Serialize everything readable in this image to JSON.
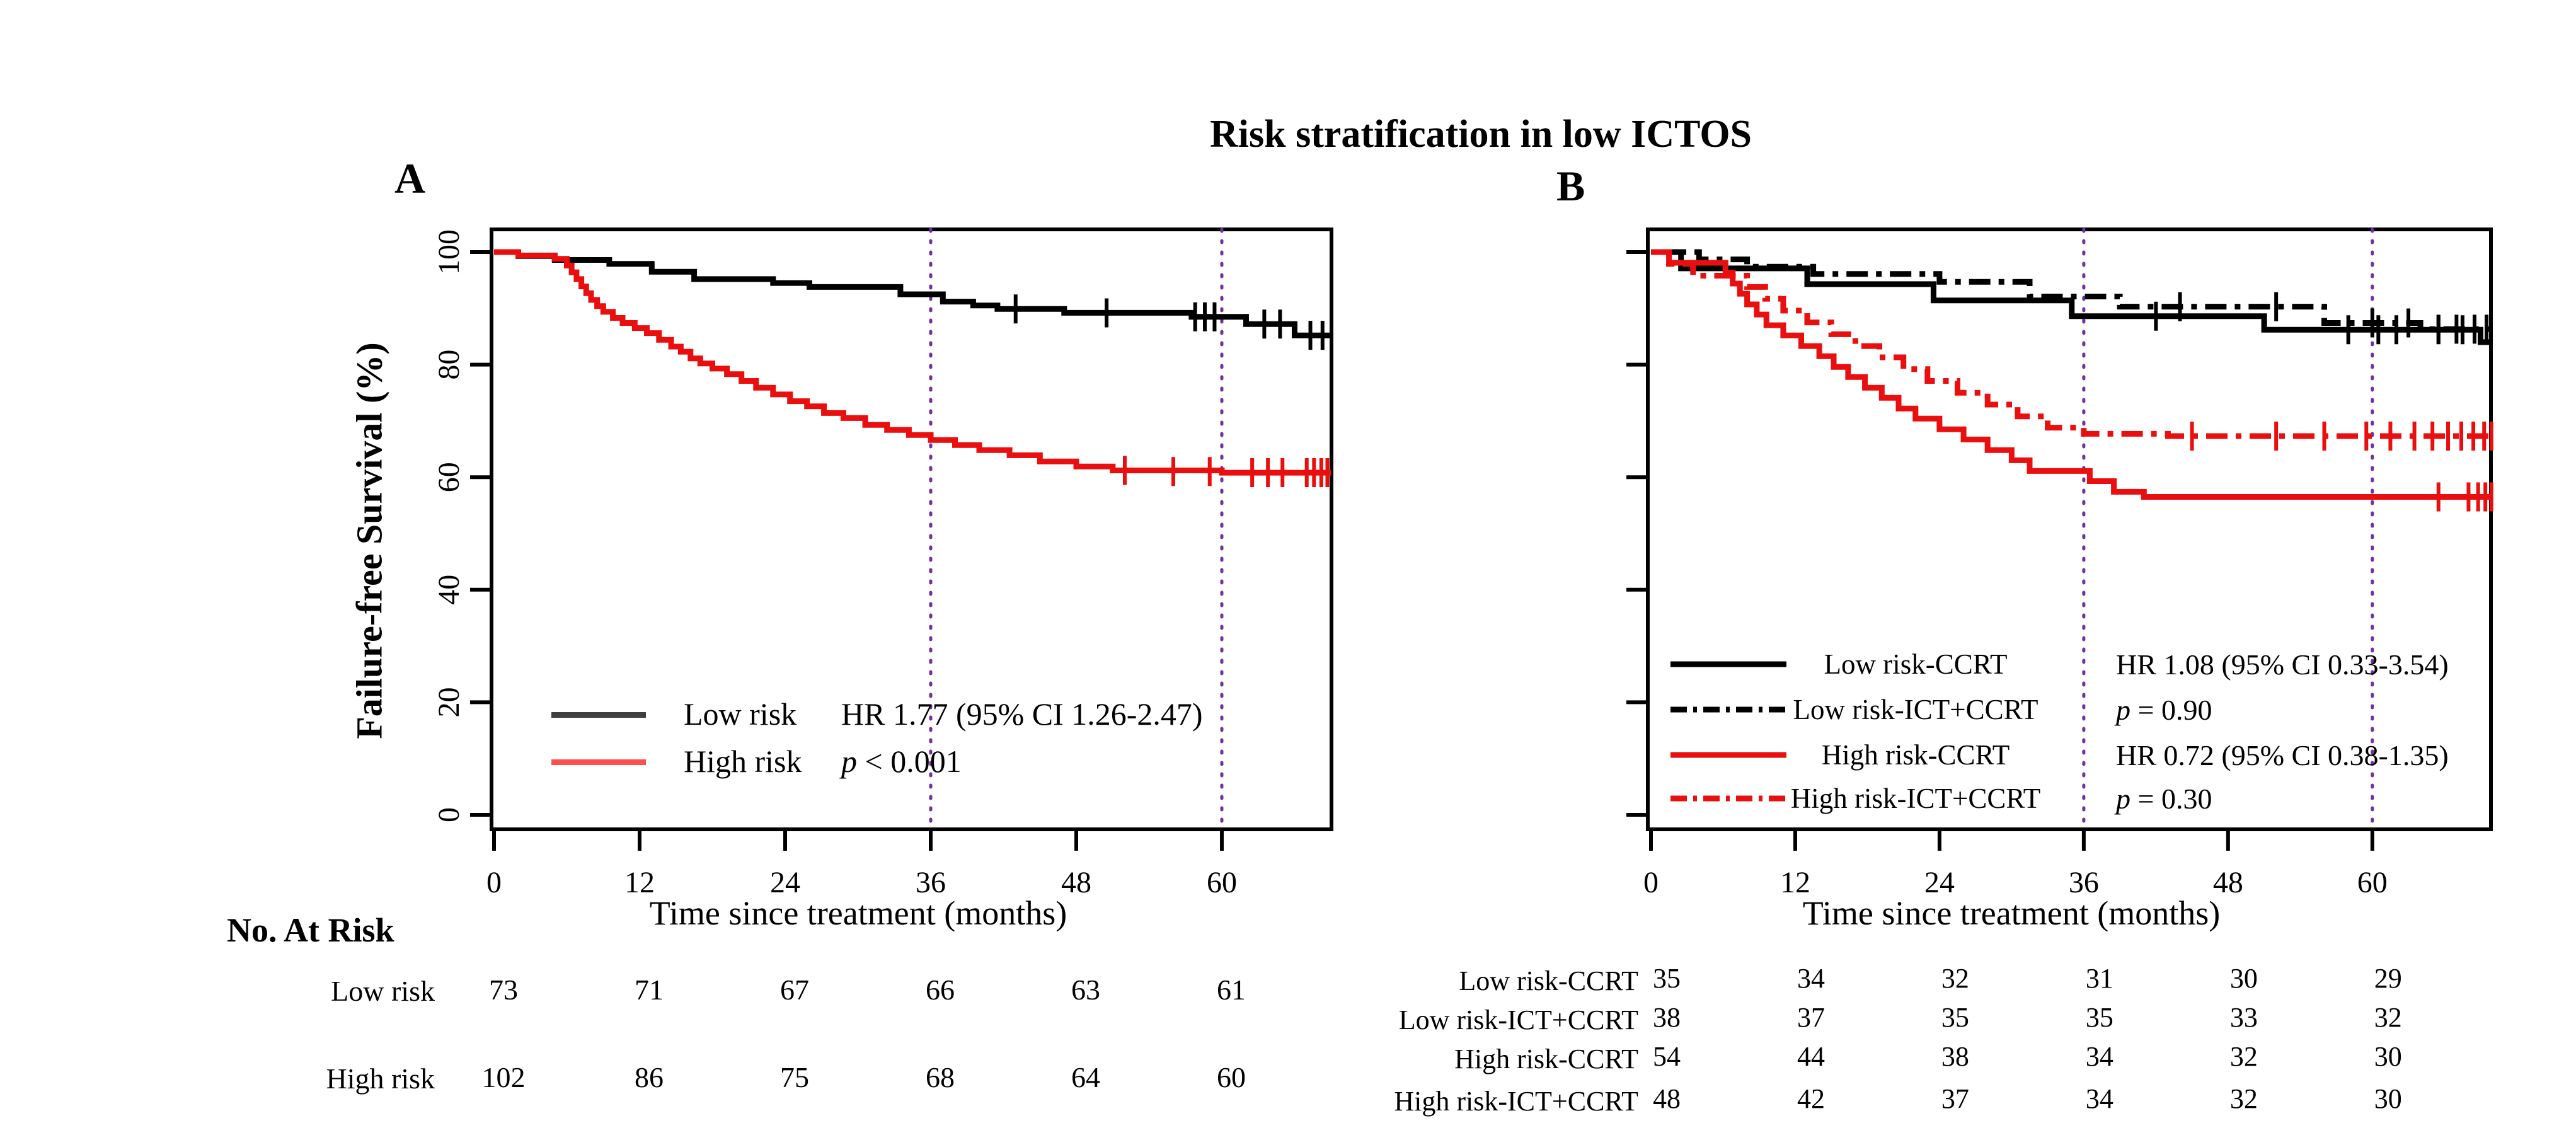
{
  "title": "Risk stratification in low ICTOS",
  "colors": {
    "black": "#000000",
    "red": "#e90f0f",
    "legend_black_a": "#3f3f3f",
    "legend_red_a": "#ff5050",
    "vline_purple": "#7030a0"
  },
  "chart_data": [
    {
      "type": "line",
      "subtype": "kaplan-meier",
      "panel_label": "A",
      "y_axis_label": "Failure-free Survival (%)",
      "x_axis_label": "Time since treatment (months)",
      "x_ticks": [
        "0",
        "12",
        "24",
        "36",
        "48",
        "60"
      ],
      "x_tick_months": [
        0,
        12,
        24,
        36,
        48,
        60
      ],
      "y_ticks": [
        "0",
        "20",
        "40",
        "60",
        "80",
        "100"
      ],
      "y_tick_values": [
        0,
        20,
        40,
        60,
        80,
        100
      ],
      "xlim": [
        0,
        69
      ],
      "ylim": [
        0,
        100
      ],
      "reference_lines_months": [
        36,
        60
      ],
      "legend": [
        {
          "name": "Low risk",
          "line": "solid",
          "color": "black",
          "stat": "HR 1.77  (95% CI 1.26-2.47)"
        },
        {
          "name": "High risk",
          "line": "solid",
          "color": "red",
          "stat_p": "p",
          "stat_rest": " < 0.001"
        }
      ],
      "series": [
        {
          "name": "Low risk",
          "color": "black",
          "dash": "solid",
          "steps": [
            [
              0,
              100
            ],
            [
              2,
              99.3
            ],
            [
              5,
              98.6
            ],
            [
              9.5,
              97.9
            ],
            [
              13,
              96.5
            ],
            [
              16.5,
              95.2
            ],
            [
              23,
              94.5
            ],
            [
              26,
              93.8
            ],
            [
              33.5,
              92.5
            ],
            [
              37,
              91.2
            ],
            [
              39.5,
              90.5
            ],
            [
              41.5,
              89.9
            ],
            [
              47,
              89.2
            ],
            [
              57.5,
              88.5
            ],
            [
              62,
              87.2
            ],
            [
              66,
              85.2
            ],
            [
              69,
              85.2
            ]
          ],
          "censors": [
            [
              43,
              89.9
            ],
            [
              50.5,
              89.2
            ],
            [
              57.8,
              88.5
            ],
            [
              58.6,
              88.5
            ],
            [
              59.4,
              88.5
            ],
            [
              63.5,
              87.2
            ],
            [
              64.8,
              87.2
            ],
            [
              67.3,
              85.2
            ],
            [
              68.3,
              85.2
            ]
          ]
        },
        {
          "name": "High risk",
          "color": "red",
          "dash": "solid",
          "steps": [
            [
              0,
              100
            ],
            [
              2,
              99.4
            ],
            [
              5,
              98.8
            ],
            [
              6,
              97.6
            ],
            [
              6.4,
              96.4
            ],
            [
              6.8,
              95.2
            ],
            [
              7.2,
              93.9
            ],
            [
              7.6,
              92.7
            ],
            [
              8,
              91.5
            ],
            [
              8.5,
              90.4
            ],
            [
              9,
              89.4
            ],
            [
              9.8,
              88.3
            ],
            [
              10.6,
              87.4
            ],
            [
              11.6,
              86.5
            ],
            [
              12.6,
              85.6
            ],
            [
              13.6,
              84.4
            ],
            [
              14.6,
              83.2
            ],
            [
              15.4,
              82.3
            ],
            [
              16.2,
              81.1
            ],
            [
              17,
              80.2
            ],
            [
              18,
              79.3
            ],
            [
              19.2,
              78.3
            ],
            [
              20.4,
              77.1
            ],
            [
              21.6,
              75.9
            ],
            [
              23,
              74.7
            ],
            [
              24.4,
              73.5
            ],
            [
              25.8,
              72.6
            ],
            [
              27.2,
              71.4
            ],
            [
              28.8,
              70.5
            ],
            [
              30.6,
              69.3
            ],
            [
              32.4,
              68.4
            ],
            [
              34.2,
              67.5
            ],
            [
              36,
              66.6
            ],
            [
              38,
              65.7
            ],
            [
              40,
              64.8
            ],
            [
              42.5,
              63.9
            ],
            [
              45,
              62.8
            ],
            [
              48,
              61.9
            ],
            [
              51,
              61.2
            ],
            [
              60,
              60.8
            ],
            [
              69,
              60.8
            ]
          ],
          "censors": [
            [
              52,
              61.2
            ],
            [
              56,
              61
            ],
            [
              59,
              61
            ],
            [
              62.5,
              60.8
            ],
            [
              63.8,
              60.8
            ],
            [
              65,
              60.8
            ],
            [
              67,
              60.8
            ],
            [
              67.6,
              60.8
            ],
            [
              68.2,
              60.8
            ],
            [
              68.7,
              60.8
            ]
          ]
        }
      ],
      "risk_table": {
        "header": "No. At Risk",
        "rows": [
          {
            "label": "Low risk",
            "values": [
              "73",
              "71",
              "67",
              "66",
              "63",
              "61"
            ]
          },
          {
            "label": "High risk",
            "values": [
              "102",
              "86",
              "75",
              "68",
              "64",
              "60"
            ]
          }
        ]
      }
    },
    {
      "type": "line",
      "subtype": "kaplan-meier",
      "panel_label": "B",
      "y_axis_label": "",
      "x_axis_label": "Time since treatment (months)",
      "x_ticks": [
        "0",
        "12",
        "24",
        "36",
        "48",
        "60"
      ],
      "x_tick_months": [
        0,
        12,
        24,
        36,
        48,
        60
      ],
      "y_ticks": [
        "0",
        "20",
        "40",
        "60",
        "80",
        "100"
      ],
      "y_tick_values": [
        0,
        20,
        40,
        60,
        80,
        100
      ],
      "xlim": [
        0,
        70
      ],
      "ylim": [
        0,
        100
      ],
      "reference_lines_months": [
        36,
        60
      ],
      "legend": [
        {
          "name": "Low risk-CCRT",
          "line": "solid",
          "color": "black",
          "stat": "HR 1.08  (95% CI 0.33-3.54)"
        },
        {
          "name": "Low risk-ICT+CCRT",
          "line": "dashdot",
          "color": "black",
          "stat_p": "p",
          "stat_rest": " = 0.90"
        },
        {
          "name": "High risk-CCRT",
          "line": "solid",
          "color": "red",
          "stat": "HR 0.72  (95% CI 0.38-1.35)"
        },
        {
          "name": "High risk-ICT+CCRT",
          "line": "dashdot",
          "color": "red",
          "stat_p": "p",
          "stat_rest": " = 0.30"
        }
      ],
      "series": [
        {
          "name": "Low risk-CCRT",
          "color": "black",
          "dash": "solid",
          "steps": [
            [
              0,
              100
            ],
            [
              2.5,
              97.1
            ],
            [
              13,
              94.3
            ],
            [
              23.5,
              91.4
            ],
            [
              35,
              88.6
            ],
            [
              51,
              86.2
            ],
            [
              69,
              84
            ],
            [
              70,
              84
            ]
          ],
          "censors": [
            [
              42,
              88.6
            ],
            [
              58,
              86.2
            ],
            [
              60.5,
              86.2
            ],
            [
              62,
              86.2
            ],
            [
              65.5,
              86.2
            ],
            [
              67.5,
              86.2
            ]
          ]
        },
        {
          "name": "Low risk-ICT+CCRT",
          "color": "black",
          "dash": "dashdot",
          "steps": [
            [
              0,
              100
            ],
            [
              4,
              98.7
            ],
            [
              8,
              97.4
            ],
            [
              13.5,
              96.1
            ],
            [
              24,
              94.7
            ],
            [
              31.5,
              92.1
            ],
            [
              39,
              90.3
            ],
            [
              56,
              87.4
            ],
            [
              64,
              86.3
            ],
            [
              70,
              86.3
            ]
          ],
          "censors": [
            [
              44,
              90.3
            ],
            [
              52,
              90.3
            ],
            [
              60,
              87.4
            ],
            [
              63,
              87.4
            ],
            [
              65.5,
              86.3
            ],
            [
              67,
              86.3
            ],
            [
              68.5,
              86.3
            ],
            [
              69.5,
              86.3
            ]
          ]
        },
        {
          "name": "High risk-CCRT",
          "color": "red",
          "dash": "solid",
          "steps": [
            [
              0,
              100
            ],
            [
              1.5,
              98.1
            ],
            [
              6.2,
              96.3
            ],
            [
              6.8,
              94.4
            ],
            [
              7.4,
              92.6
            ],
            [
              8,
              90.7
            ],
            [
              8.8,
              88.9
            ],
            [
              9.6,
              87
            ],
            [
              11,
              85.2
            ],
            [
              12.5,
              83.3
            ],
            [
              14,
              81.5
            ],
            [
              15.2,
              79.6
            ],
            [
              16.4,
              77.8
            ],
            [
              17.8,
              75.9
            ],
            [
              19.2,
              74.1
            ],
            [
              20.6,
              72.2
            ],
            [
              22,
              70.4
            ],
            [
              24,
              68.5
            ],
            [
              26,
              66.7
            ],
            [
              28,
              64.8
            ],
            [
              30,
              63
            ],
            [
              31.5,
              61.1
            ],
            [
              36.5,
              59.3
            ],
            [
              38.5,
              57.4
            ],
            [
              41,
              56.5
            ],
            [
              70,
              56.5
            ]
          ],
          "censors": [
            [
              65.5,
              56.5
            ],
            [
              68,
              56.5
            ],
            [
              68.8,
              56.5
            ],
            [
              69.4,
              56.5
            ],
            [
              69.9,
              56.5
            ]
          ]
        },
        {
          "name": "High risk-ICT+CCRT",
          "color": "red",
          "dash": "dashdot",
          "steps": [
            [
              0,
              100
            ],
            [
              1.5,
              97.9
            ],
            [
              3.5,
              95.8
            ],
            [
              8,
              93.8
            ],
            [
              9.5,
              91.7
            ],
            [
              11,
              89.6
            ],
            [
              13,
              87.5
            ],
            [
              15,
              85.4
            ],
            [
              17,
              83.3
            ],
            [
              19,
              81.3
            ],
            [
              21,
              79.2
            ],
            [
              23,
              77.1
            ],
            [
              25.5,
              75
            ],
            [
              28,
              72.9
            ],
            [
              30.5,
              70.8
            ],
            [
              33,
              68.8
            ],
            [
              36,
              67.7
            ],
            [
              43,
              67.3
            ],
            [
              70,
              67.3
            ]
          ],
          "censors": [
            [
              45,
              67.3
            ],
            [
              52,
              67.3
            ],
            [
              56,
              67.3
            ],
            [
              59.5,
              67.3
            ],
            [
              61.5,
              67.3
            ],
            [
              63.5,
              67.3
            ],
            [
              65,
              67.3
            ],
            [
              66.3,
              67.3
            ],
            [
              67.4,
              67.3
            ],
            [
              68.4,
              67.3
            ],
            [
              69.3,
              67.3
            ],
            [
              69.9,
              67.3
            ]
          ]
        }
      ],
      "risk_table": {
        "header": "",
        "rows": [
          {
            "label": "Low risk-CCRT",
            "values": [
              "35",
              "34",
              "32",
              "31",
              "30",
              "29"
            ]
          },
          {
            "label": "Low risk-ICT+CCRT",
            "values": [
              "38",
              "37",
              "35",
              "35",
              "33",
              "32"
            ]
          },
          {
            "label": "High risk-CCRT",
            "values": [
              "54",
              "44",
              "38",
              "34",
              "32",
              "30"
            ]
          },
          {
            "label": "High risk-ICT+CCRT",
            "values": [
              "48",
              "42",
              "37",
              "34",
              "32",
              "30"
            ]
          }
        ]
      }
    }
  ]
}
